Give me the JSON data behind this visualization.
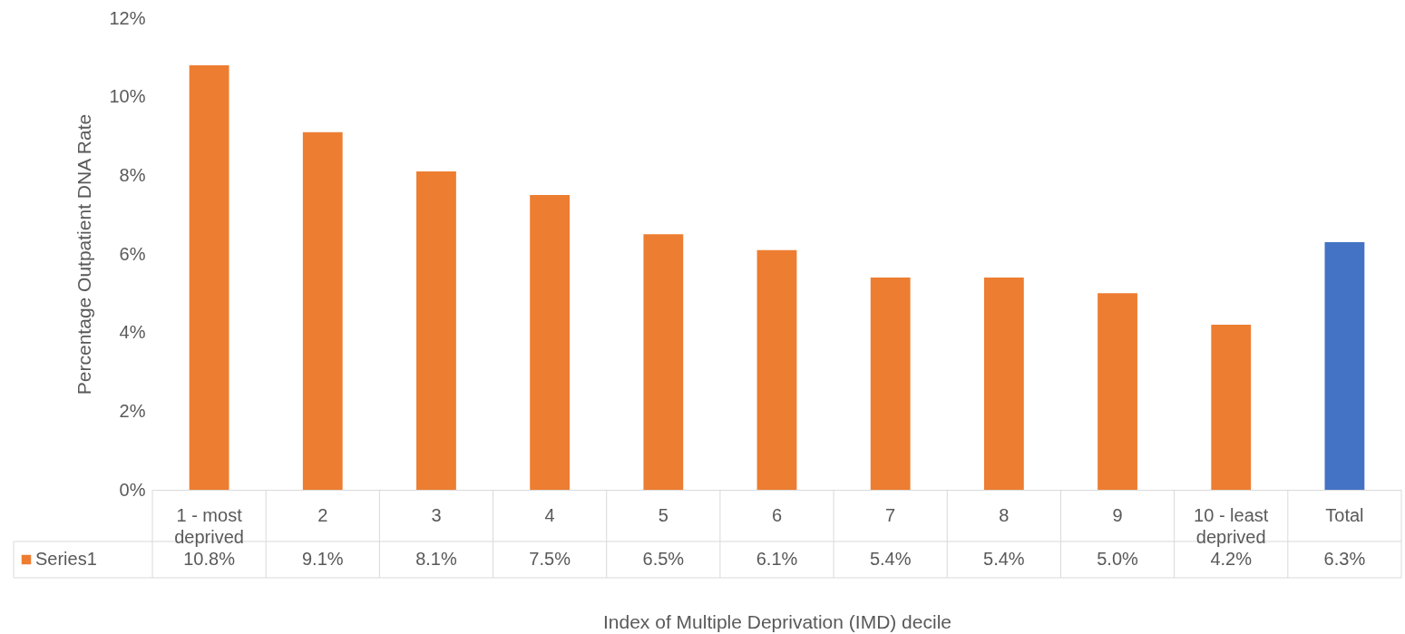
{
  "chart_data": {
    "type": "bar",
    "xlabel": "Index of Multiple Deprivation (IMD) decile",
    "ylabel": "Percentage Outpatient DNA Rate",
    "categories": [
      "1 - most deprived",
      "2",
      "3",
      "4",
      "5",
      "6",
      "7",
      "8",
      "9",
      "10 - least deprived",
      "Total"
    ],
    "series": [
      {
        "name": "Series1",
        "color": "#ed7d31",
        "colors": [
          "#ed7d31",
          "#ed7d31",
          "#ed7d31",
          "#ed7d31",
          "#ed7d31",
          "#ed7d31",
          "#ed7d31",
          "#ed7d31",
          "#ed7d31",
          "#ed7d31",
          "#4472c4"
        ],
        "values": [
          10.8,
          9.1,
          8.1,
          7.5,
          6.5,
          6.1,
          5.4,
          5.4,
          5.0,
          4.2,
          6.3
        ],
        "value_labels": [
          "10.8%",
          "9.1%",
          "8.1%",
          "7.5%",
          "6.5%",
          "6.1%",
          "5.4%",
          "5.4%",
          "5.0%",
          "4.2%",
          "6.3%"
        ]
      }
    ],
    "ylim": [
      0,
      12
    ],
    "yticks": [
      {
        "value": 0,
        "label": "0%"
      },
      {
        "value": 2,
        "label": "2%"
      },
      {
        "value": 4,
        "label": "4%"
      },
      {
        "value": 6,
        "label": "6%"
      },
      {
        "value": 8,
        "label": "8%"
      },
      {
        "value": 10,
        "label": "10%"
      },
      {
        "value": 12,
        "label": "12%"
      }
    ],
    "grid": false
  }
}
